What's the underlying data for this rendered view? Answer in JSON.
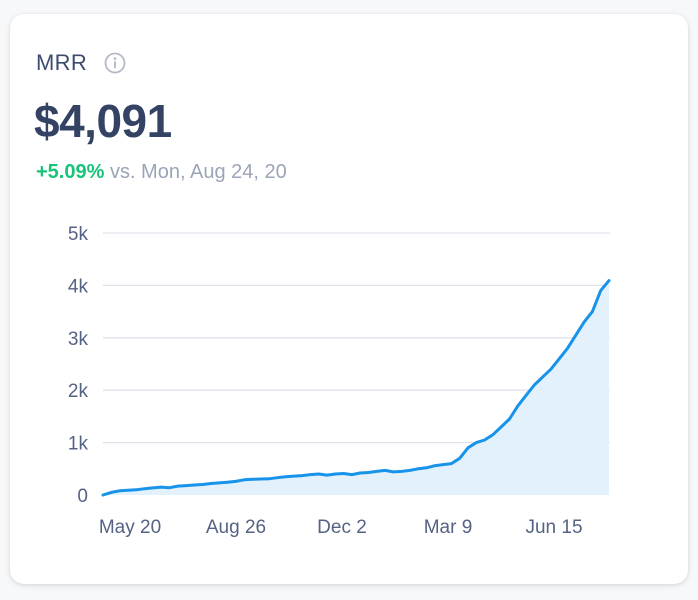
{
  "widget": {
    "title": "MRR",
    "info_icon": "info-icon",
    "value": "$4,091",
    "change": "+5.09%",
    "comparison": " vs. Mon, Aug 24, 20"
  },
  "colors": {
    "line": "#1793ea",
    "area": "#e3f1fc",
    "grid": "#dfe3ec",
    "positive": "#17c47a"
  },
  "chart_data": {
    "type": "area",
    "title": "",
    "xlabel": "",
    "ylabel": "",
    "ylim": [
      0,
      5000
    ],
    "yticks": [
      0,
      1000,
      2000,
      3000,
      4000,
      5000
    ],
    "ytick_labels": [
      "0",
      "1k",
      "2k",
      "3k",
      "4k",
      "5k"
    ],
    "xtick_labels": [
      "May 20",
      "Aug 26",
      "Dec 2",
      "Mar 9",
      "Jun 15"
    ],
    "grid": true,
    "series": [
      {
        "values": [
          0,
          50,
          80,
          90,
          100,
          120,
          135,
          150,
          140,
          170,
          180,
          190,
          200,
          220,
          230,
          245,
          260,
          290,
          300,
          305,
          310,
          330,
          350,
          360,
          370,
          390,
          400,
          380,
          400,
          410,
          390,
          420,
          430,
          450,
          470,
          440,
          450,
          470,
          500,
          520,
          560,
          580,
          600,
          700,
          900,
          1000,
          1050,
          1150,
          1300,
          1450,
          1700,
          1900,
          2100,
          2250,
          2400,
          2600,
          2800,
          3050,
          3300,
          3500,
          3900,
          4091
        ]
      }
    ]
  }
}
